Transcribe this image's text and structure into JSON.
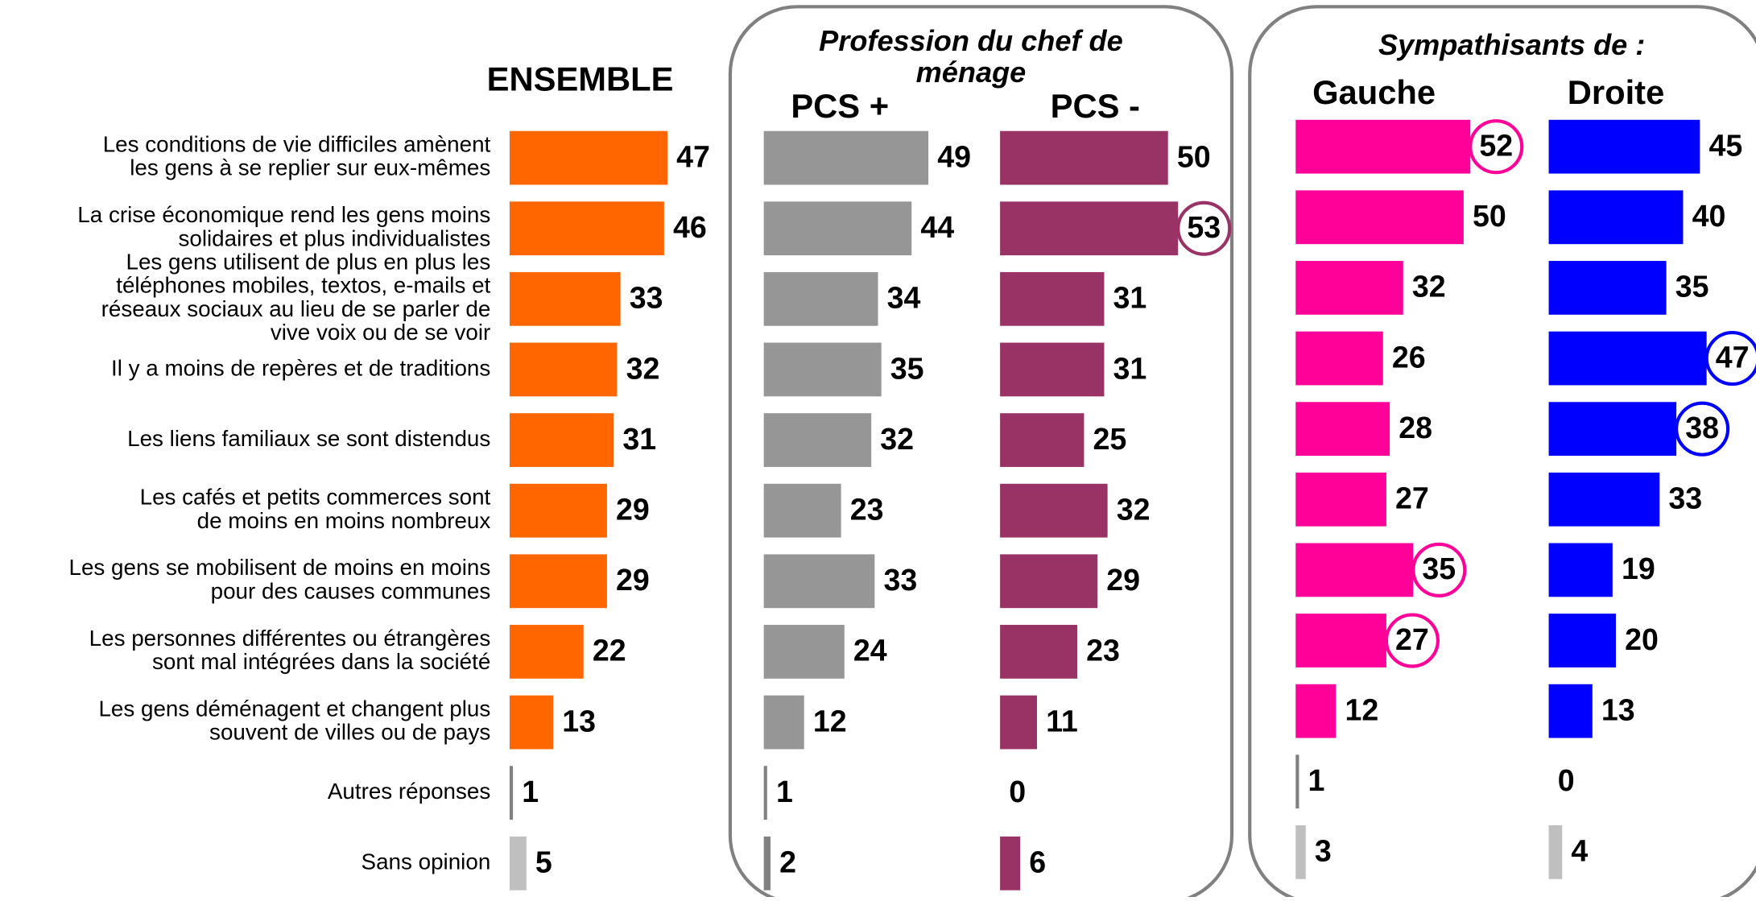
{
  "chart_data": {
    "type": "bar",
    "annotations": [
      "Profession du chef de\nménage",
      "Sympathisants de :"
    ],
    "categories": [
      "Les conditions de vie difficiles amènent\nles gens à se replier sur eux-mêmes",
      "La crise économique rend les gens moins\nsolidaires et plus individualistes",
      "Les gens utilisent de plus en plus les\ntéléphones mobiles, textos, e-mails et\nréseaux sociaux au lieu de se parler de\nvive voix ou de se voir",
      "Il y a moins de repères et de traditions",
      "Les liens familiaux se sont distendus",
      "Les cafés et petits commerces sont\nde moins en moins nombreux",
      "Les gens se mobilisent de moins en moins\npour des causes communes",
      "Les personnes différentes ou étrangères\nsont mal intégrées dans la société",
      "Les gens déménagent et changent plus\nsouvent de villes ou de pays",
      "Autres réponses",
      "Sans opinion"
    ],
    "series": [
      {
        "name": "ENSEMBLE",
        "values": [
          47,
          46,
          33,
          32,
          31,
          29,
          29,
          22,
          13,
          1,
          5
        ],
        "colors": [
          "#ff6600",
          "#ff6600",
          "#ff6600",
          "#ff6600",
          "#ff6600",
          "#ff6600",
          "#ff6600",
          "#ff6600",
          "#ff6600",
          "#808080",
          "#bfbfbf"
        ],
        "circled": []
      },
      {
        "name": "PCS +",
        "values": [
          49,
          44,
          34,
          35,
          32,
          23,
          33,
          24,
          12,
          1,
          2
        ],
        "colors": [
          "#969696",
          "#969696",
          "#969696",
          "#969696",
          "#969696",
          "#969696",
          "#969696",
          "#969696",
          "#969696",
          "#808080",
          "#808080"
        ],
        "circled": []
      },
      {
        "name": "PCS -",
        "values": [
          50,
          53,
          31,
          31,
          25,
          32,
          29,
          23,
          11,
          0,
          6
        ],
        "colors": [
          "#993366",
          "#993366",
          "#993366",
          "#993366",
          "#993366",
          "#993366",
          "#993366",
          "#993366",
          "#993366",
          "#993366",
          "#993366"
        ],
        "circled": [
          1
        ]
      },
      {
        "name": "Gauche",
        "values": [
          52,
          50,
          32,
          26,
          28,
          27,
          35,
          27,
          12,
          1,
          3
        ],
        "colors": [
          "#ff0099",
          "#ff0099",
          "#ff0099",
          "#ff0099",
          "#ff0099",
          "#ff0099",
          "#ff0099",
          "#ff0099",
          "#ff0099",
          "#808080",
          "#bfbfbf"
        ],
        "circled": [
          0,
          6,
          7
        ]
      },
      {
        "name": "Droite",
        "values": [
          45,
          40,
          35,
          47,
          38,
          33,
          19,
          20,
          13,
          0,
          4
        ],
        "colors": [
          "#0000ff",
          "#0000ff",
          "#0000ff",
          "#0000ff",
          "#0000ff",
          "#0000ff",
          "#0000ff",
          "#0000ff",
          "#0000ff",
          "#808080",
          "#bfbfbf"
        ],
        "circled": [
          3,
          4
        ]
      }
    ]
  }
}
